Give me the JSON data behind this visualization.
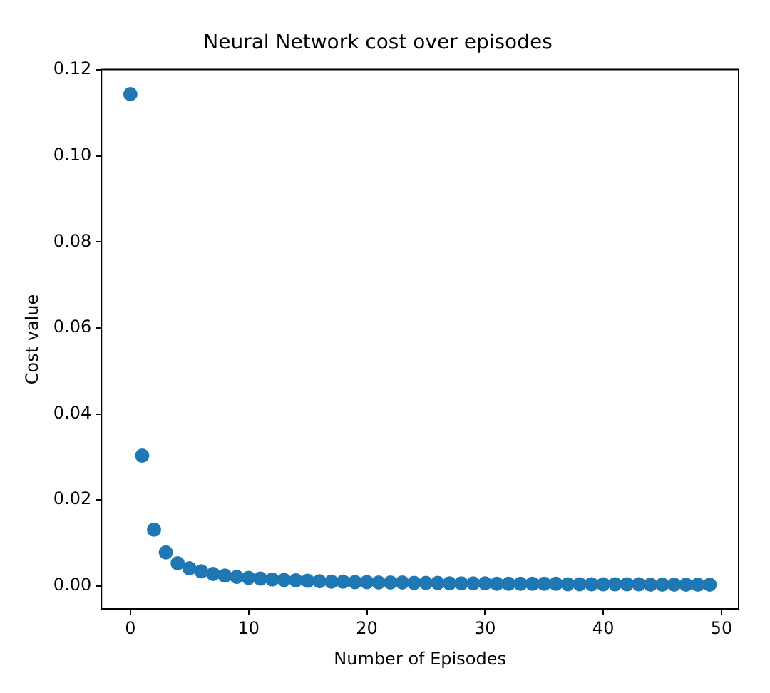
{
  "chart_data": {
    "type": "scatter",
    "title": "Neural Network cost over episodes",
    "xlabel": "Number of Episodes",
    "ylabel": "Cost value",
    "x": [
      0,
      1,
      2,
      3,
      4,
      5,
      6,
      7,
      8,
      9,
      10,
      11,
      12,
      13,
      14,
      15,
      16,
      17,
      18,
      19,
      20,
      21,
      22,
      23,
      24,
      25,
      26,
      27,
      28,
      29,
      30,
      31,
      32,
      33,
      34,
      35,
      36,
      37,
      38,
      39,
      40,
      41,
      42,
      43,
      44,
      45,
      46,
      47,
      48,
      49
    ],
    "series": [
      {
        "color": "#1f77b4",
        "values": [
          0.1144,
          0.0303,
          0.0131,
          0.0078,
          0.0053,
          0.0041,
          0.0034,
          0.0028,
          0.0024,
          0.0021,
          0.0019,
          0.0017,
          0.0015,
          0.0014,
          0.0013,
          0.0012,
          0.0011,
          0.001,
          0.001,
          0.0009,
          0.0009,
          0.0008,
          0.0008,
          0.0008,
          0.0007,
          0.0007,
          0.0007,
          0.0006,
          0.0006,
          0.0006,
          0.0006,
          0.0005,
          0.0005,
          0.0005,
          0.0005,
          0.0005,
          0.0005,
          0.0004,
          0.0004,
          0.0004,
          0.0004,
          0.0004,
          0.0004,
          0.0004,
          0.0003,
          0.0003,
          0.0003,
          0.0003,
          0.0003,
          0.0003
        ]
      }
    ],
    "xlim": [
      -2.45,
      51.45
    ],
    "ylim": [
      -0.0054,
      0.1201
    ],
    "xticks": [
      0,
      10,
      20,
      30,
      40,
      50
    ],
    "yticks": [
      {
        "value": 0,
        "label": "0.00"
      },
      {
        "value": 0.02,
        "label": "0.02"
      },
      {
        "value": 0.04,
        "label": "0.04"
      },
      {
        "value": 0.06,
        "label": "0.06"
      },
      {
        "value": 0.08,
        "label": "0.08"
      },
      {
        "value": 0.1,
        "label": "0.10"
      },
      {
        "value": 0.12,
        "label": "0.12"
      }
    ],
    "grid": false,
    "legend": false,
    "marker": "circle"
  }
}
